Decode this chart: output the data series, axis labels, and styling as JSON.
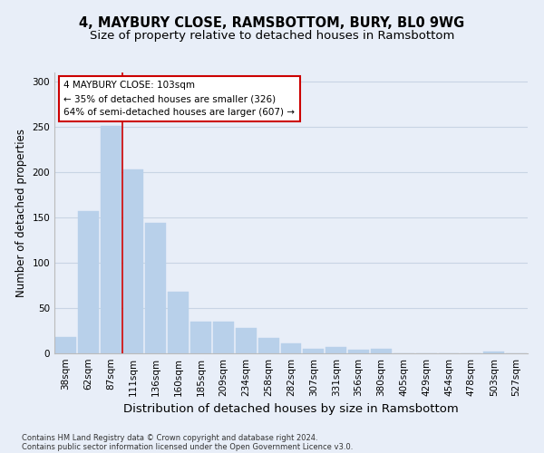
{
  "title_line1": "4, MAYBURY CLOSE, RAMSBOTTOM, BURY, BL0 9WG",
  "title_line2": "Size of property relative to detached houses in Ramsbottom",
  "xlabel": "Distribution of detached houses by size in Ramsbottom",
  "ylabel": "Number of detached properties",
  "categories": [
    "38sqm",
    "62sqm",
    "87sqm",
    "111sqm",
    "136sqm",
    "160sqm",
    "185sqm",
    "209sqm",
    "234sqm",
    "258sqm",
    "282sqm",
    "307sqm",
    "331sqm",
    "356sqm",
    "380sqm",
    "405sqm",
    "429sqm",
    "454sqm",
    "478sqm",
    "503sqm",
    "527sqm"
  ],
  "values": [
    18,
    157,
    251,
    203,
    144,
    68,
    35,
    35,
    28,
    17,
    11,
    5,
    7,
    4,
    5,
    0,
    0,
    0,
    0,
    2,
    0
  ],
  "bar_color": "#b8d0ea",
  "bar_edge_color": "#b8d0ea",
  "grid_color": "#c8d4e4",
  "background_color": "#e8eef8",
  "red_line_color": "#cc0000",
  "annotation_text": "4 MAYBURY CLOSE: 103sqm\n← 35% of detached houses are smaller (326)\n64% of semi-detached houses are larger (607) →",
  "annotation_box_color": "#ffffff",
  "annotation_border_color": "#cc0000",
  "footnote1": "Contains HM Land Registry data © Crown copyright and database right 2024.",
  "footnote2": "Contains public sector information licensed under the Open Government Licence v3.0.",
  "ylim": [
    0,
    310
  ],
  "title_fontsize": 10.5,
  "subtitle_fontsize": 9.5,
  "tick_fontsize": 7.5,
  "ylabel_fontsize": 8.5,
  "xlabel_fontsize": 9.5,
  "annotation_fontsize": 7.5,
  "footnote_fontsize": 6.0
}
